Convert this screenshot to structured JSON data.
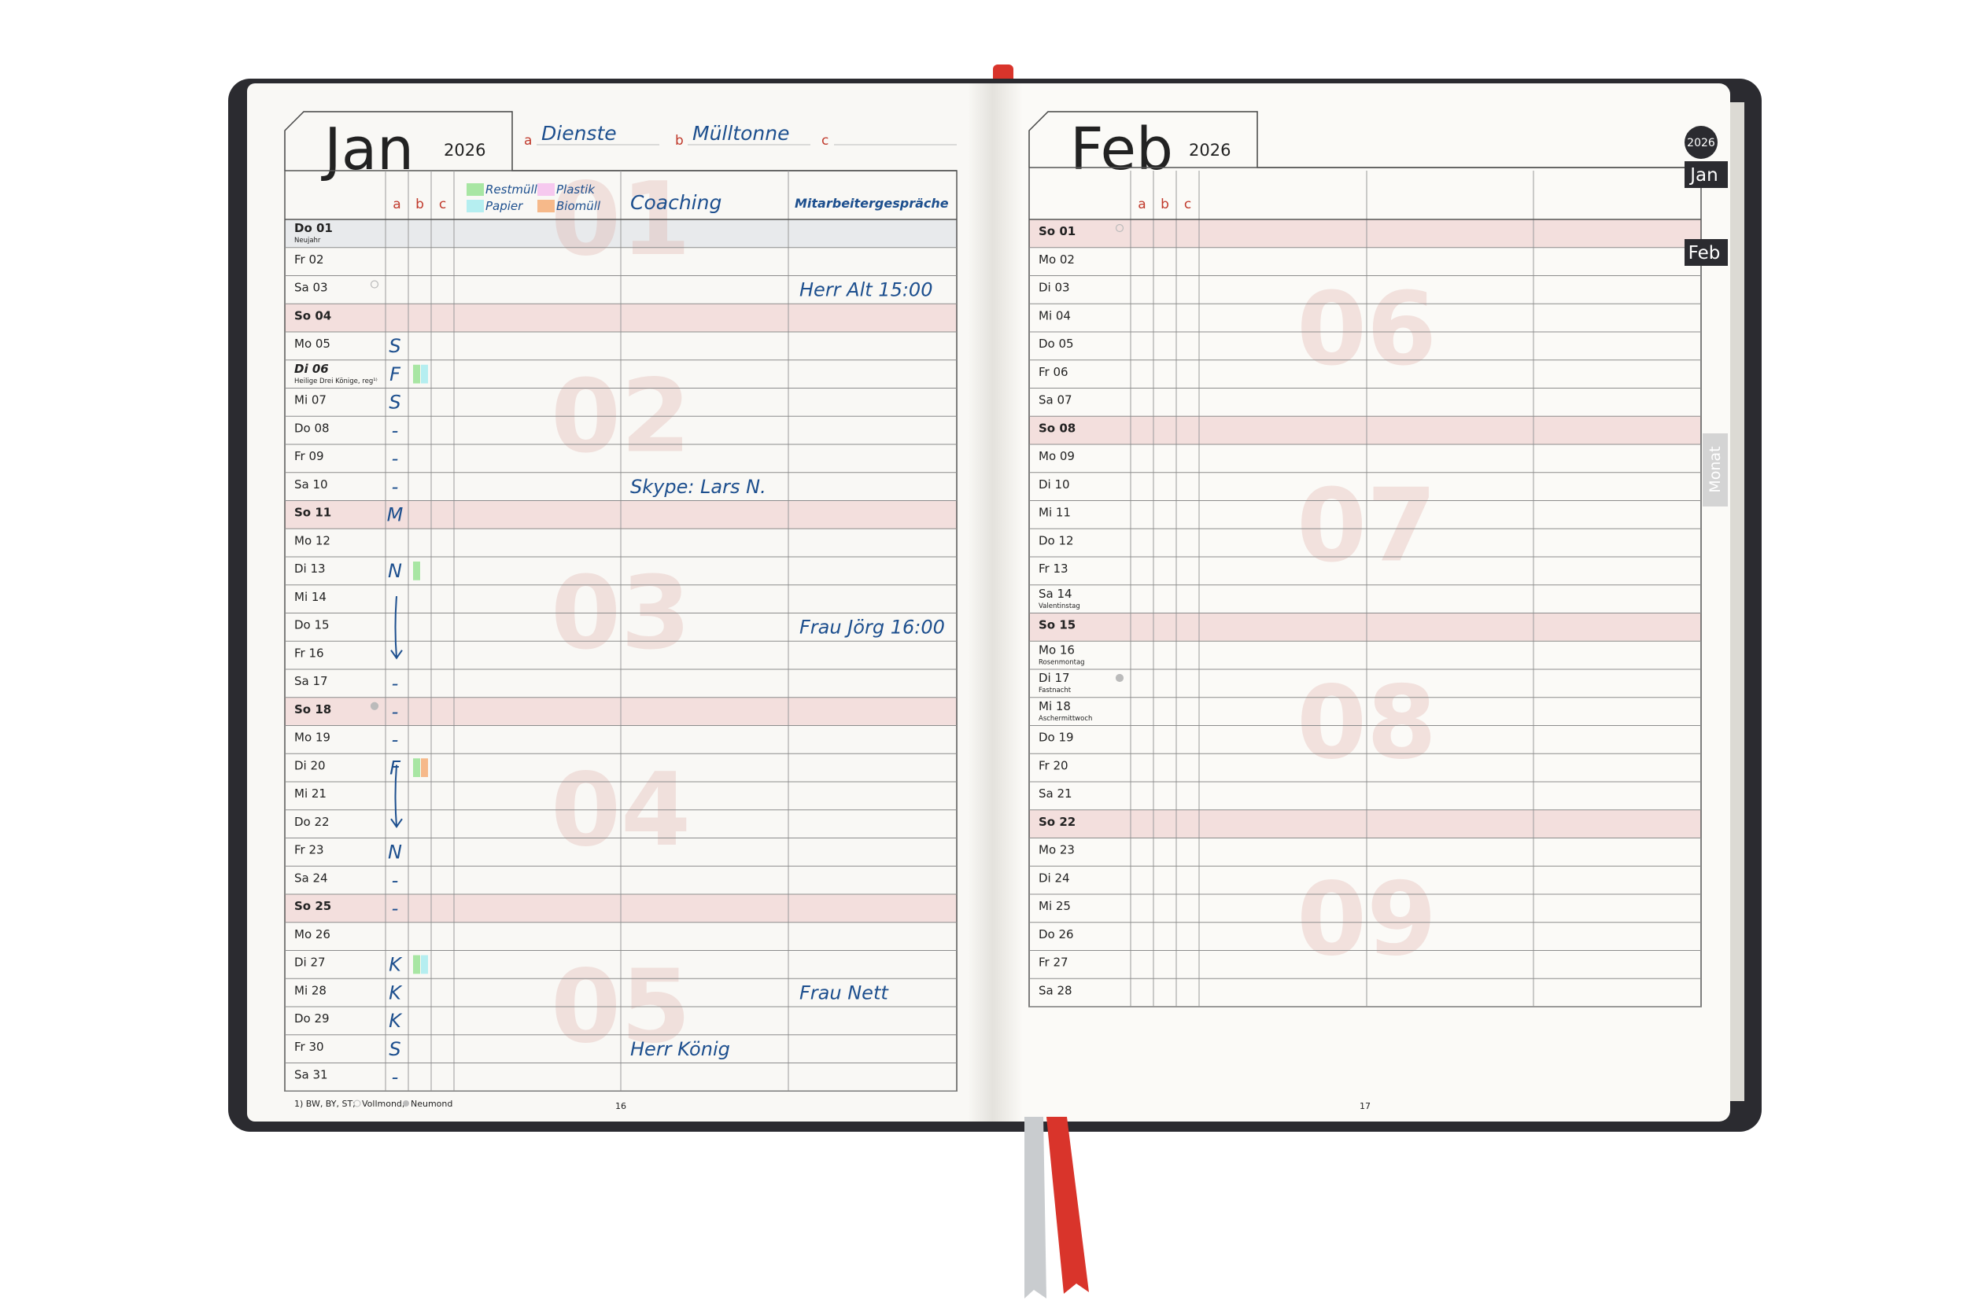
{
  "left": {
    "month": "Jan",
    "year": "2026",
    "fields": [
      {
        "letter": "a",
        "value": "Dienste"
      },
      {
        "letter": "b",
        "value": "Mülltonne"
      },
      {
        "letter": "c"
      }
    ],
    "legend": [
      {
        "name": "Restmüll",
        "color": "#a8e6a3"
      },
      {
        "name": "Plastik",
        "color": "#f6c9ef"
      },
      {
        "name": "Papier",
        "color": "#b5eef0"
      },
      {
        "name": "Biomüll",
        "color": "#f6b98a"
      }
    ],
    "col_letters": [
      "a",
      "b",
      "c"
    ],
    "headers": {
      "c2": "Coaching",
      "c3": "Mitarbeitergespräche"
    },
    "weeks": [
      "01",
      "02",
      "03",
      "04",
      "05"
    ],
    "days": [
      {
        "label": "Do 01",
        "note": "Neujahr",
        "kind": "holiday"
      },
      {
        "label": "Fr 02"
      },
      {
        "label": "Sa 03",
        "moon": "full",
        "c3": "Herr Alt 15:00"
      },
      {
        "label": "So 04",
        "kind": "sunday"
      },
      {
        "label": "Mo 05",
        "a": "S"
      },
      {
        "label": "Di 06",
        "note": "Heilige Drei Könige, reg¹⁾",
        "kind": "regional",
        "a": "F",
        "bins": [
          "#a8e6a3",
          "#b5eef0"
        ]
      },
      {
        "label": "Mi 07",
        "a": "S"
      },
      {
        "label": "Do 08",
        "a": "-"
      },
      {
        "label": "Fr 09",
        "a": "-"
      },
      {
        "label": "Sa 10",
        "a": "-",
        "c2": "Skype: Lars N."
      },
      {
        "label": "So 11",
        "kind": "sunday",
        "a": "M"
      },
      {
        "label": "Mo 12"
      },
      {
        "label": "Di 13",
        "a": "N",
        "bins": [
          "#a8e6a3"
        ]
      },
      {
        "label": "Mi 14"
      },
      {
        "label": "Do 15",
        "arrow": true,
        "c3": "Frau Jörg 16:00"
      },
      {
        "label": "Fr 16"
      },
      {
        "label": "Sa 17",
        "a": "-"
      },
      {
        "label": "So 18",
        "kind": "sunday",
        "moon": "new",
        "a": "-"
      },
      {
        "label": "Mo 19",
        "a": "-"
      },
      {
        "label": "Di 20",
        "a": "F",
        "bins": [
          "#a8e6a3",
          "#f6b98a"
        ]
      },
      {
        "label": "Mi 21",
        "arrow": true
      },
      {
        "label": "Do 22"
      },
      {
        "label": "Fr 23",
        "a": "N"
      },
      {
        "label": "Sa 24",
        "a": "-"
      },
      {
        "label": "So 25",
        "kind": "sunday",
        "a": "-"
      },
      {
        "label": "Mo 26"
      },
      {
        "label": "Di 27",
        "a": "K",
        "bins": [
          "#a8e6a3",
          "#b5eef0"
        ]
      },
      {
        "label": "Mi 28",
        "a": "K",
        "c3": "Frau Nett"
      },
      {
        "label": "Do 29",
        "a": "K"
      },
      {
        "label": "Fr 30",
        "a": "S",
        "c2": "Herr König"
      },
      {
        "label": "Sa 31",
        "a": "-"
      }
    ],
    "footer": {
      "note": "1) BW, BY, ST;",
      "full_moon": "Vollmond,",
      "new_moon": "Neumond",
      "page": "16"
    }
  },
  "right": {
    "month": "Feb",
    "year": "2026",
    "col_letters": [
      "a",
      "b",
      "c"
    ],
    "weeks": [
      "06",
      "07",
      "08",
      "09"
    ],
    "days": [
      {
        "label": "So 01",
        "kind": "sunday",
        "moon": "full"
      },
      {
        "label": "Mo 02"
      },
      {
        "label": "Di 03"
      },
      {
        "label": "Mi 04"
      },
      {
        "label": "Do 05"
      },
      {
        "label": "Fr 06"
      },
      {
        "label": "Sa 07"
      },
      {
        "label": "So 08",
        "kind": "sunday"
      },
      {
        "label": "Mo 09"
      },
      {
        "label": "Di 10"
      },
      {
        "label": "Mi 11"
      },
      {
        "label": "Do 12"
      },
      {
        "label": "Fr 13"
      },
      {
        "label": "Sa 14",
        "note": "Valentinstag"
      },
      {
        "label": "So 15",
        "kind": "sunday"
      },
      {
        "label": "Mo 16",
        "note": "Rosenmontag"
      },
      {
        "label": "Di 17",
        "note": "Fastnacht",
        "moon": "new"
      },
      {
        "label": "Mi 18",
        "note": "Aschermittwoch"
      },
      {
        "label": "Do 19"
      },
      {
        "label": "Fr 20"
      },
      {
        "label": "Sa 21"
      },
      {
        "label": "So 22",
        "kind": "sunday"
      },
      {
        "label": "Mo 23"
      },
      {
        "label": "Di 24"
      },
      {
        "label": "Mi 25"
      },
      {
        "label": "Do 26"
      },
      {
        "label": "Fr 27"
      },
      {
        "label": "Sa 28"
      }
    ],
    "footer": {
      "page": "17"
    }
  },
  "tabs": {
    "year": "2026",
    "months": [
      "Jan",
      "Feb"
    ],
    "view": "Monat"
  }
}
